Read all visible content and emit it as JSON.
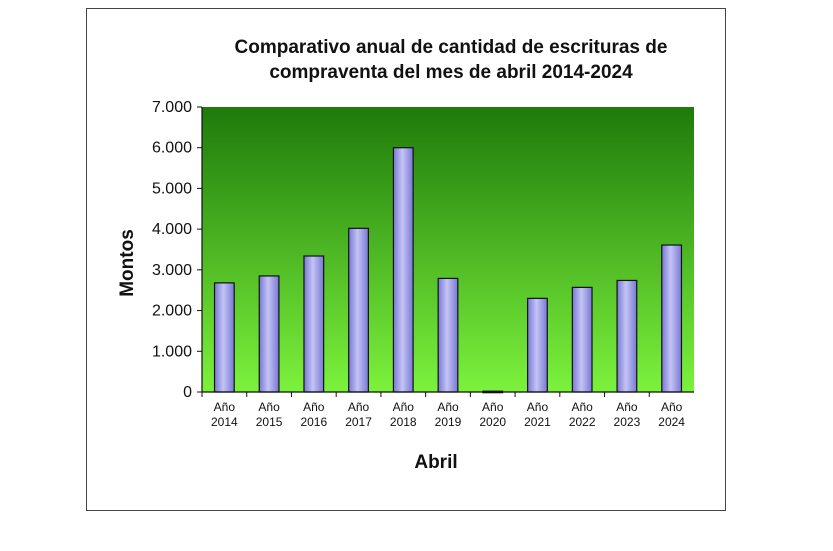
{
  "chart_data": {
    "type": "bar",
    "title_lines": [
      "Comparativo anual de cantidad de escrituras de",
      "compraventa del mes de abril 2014-2024"
    ],
    "xlabel": "Abril",
    "ylabel": "Montos",
    "ylim": [
      0,
      7000
    ],
    "yticks": [
      0,
      1000,
      2000,
      3000,
      4000,
      5000,
      6000,
      7000
    ],
    "ytick_labels": [
      "0",
      "1.000",
      "2.000",
      "3.000",
      "4.000",
      "5.000",
      "6.000",
      "7.000"
    ],
    "categories": [
      [
        "Año",
        "2014"
      ],
      [
        "Año",
        "2015"
      ],
      [
        "Año",
        "2016"
      ],
      [
        "Año",
        "2017"
      ],
      [
        "Año",
        "2018"
      ],
      [
        "Año",
        "2019"
      ],
      [
        "Año",
        "2020"
      ],
      [
        "Año",
        "2021"
      ],
      [
        "Año",
        "2022"
      ],
      [
        "Año",
        "2023"
      ],
      [
        "Año",
        "2024"
      ]
    ],
    "values": [
      2680,
      2850,
      3340,
      4020,
      6000,
      2790,
      20,
      2300,
      2570,
      2740,
      3610
    ],
    "grid": false,
    "legend": "none",
    "colors": {
      "plot_top": "#1e7a0b",
      "plot_bottom": "#7cf23c",
      "bar_fill_light": "#c4c4f4",
      "bar_fill_dark": "#7878d6",
      "bar_stroke": "#111111"
    }
  }
}
